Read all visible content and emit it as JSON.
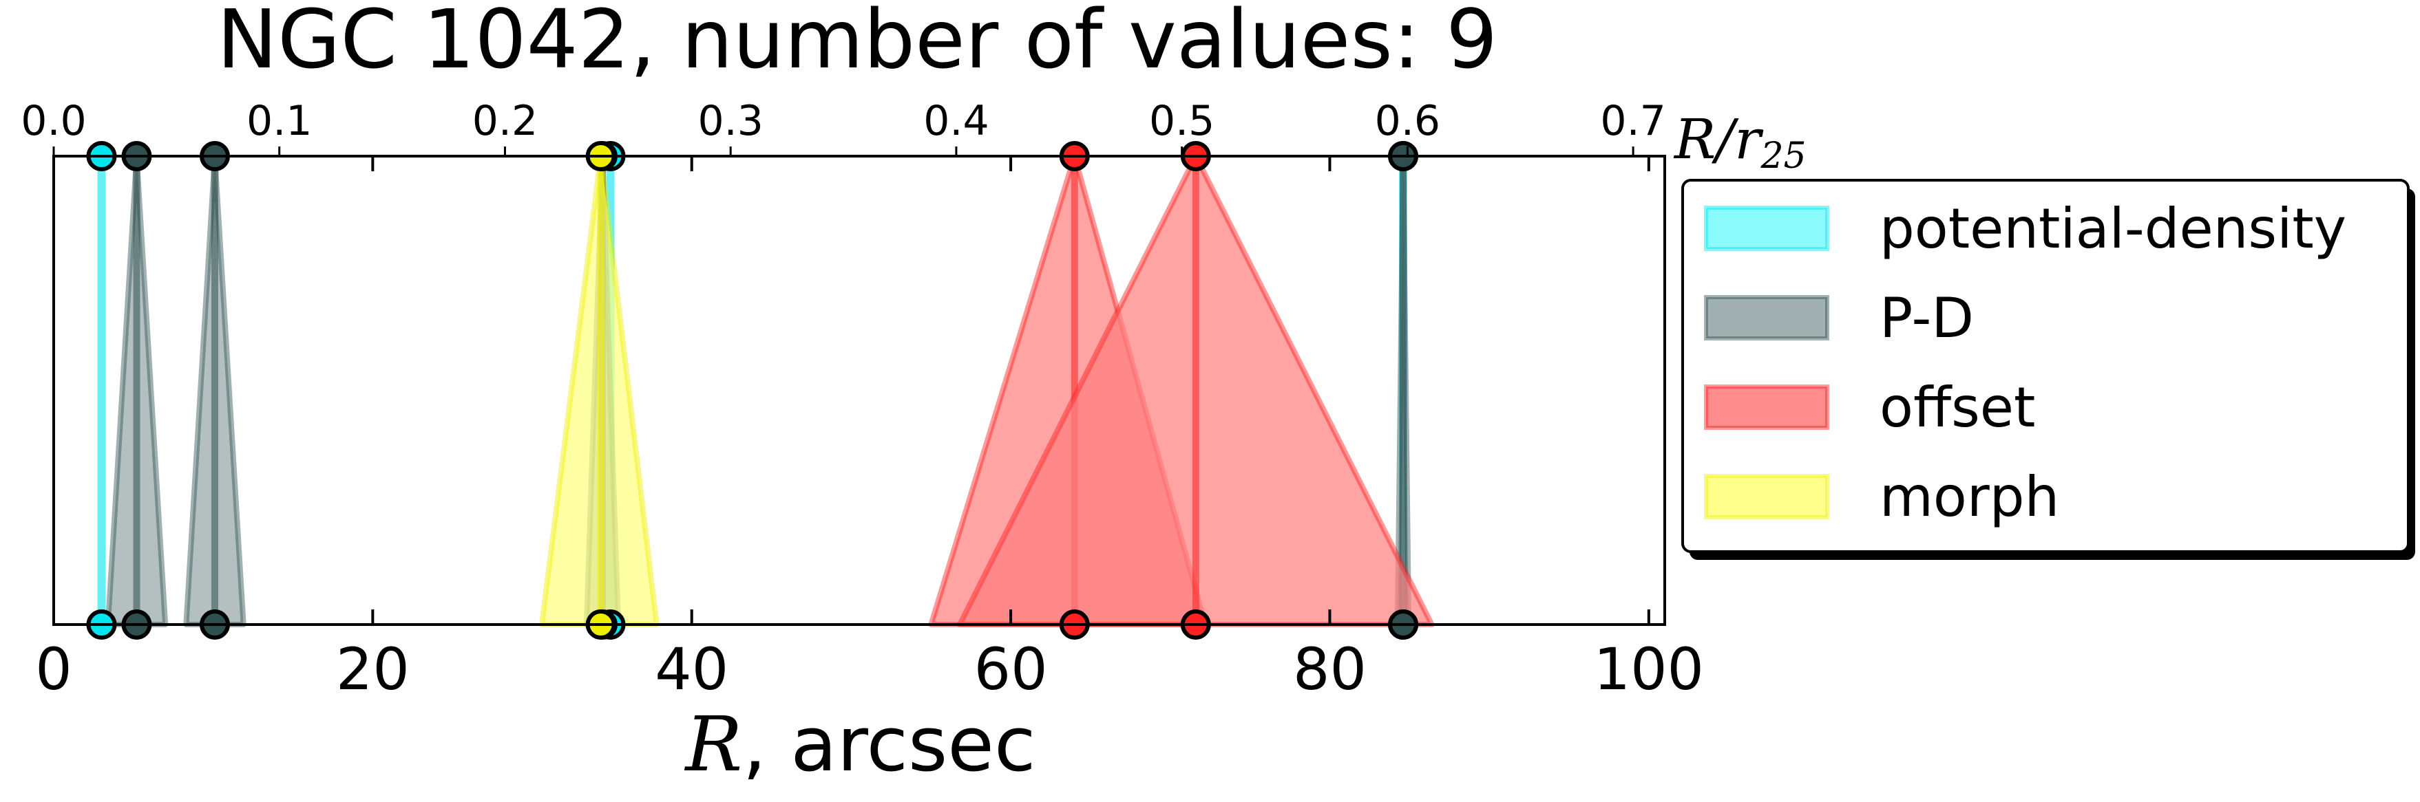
{
  "chart_data": {
    "type": "scatter",
    "title": "NGC 1042, number of values: 9",
    "xlabel_symbol": "R",
    "xlabel_unit": ", arcsec",
    "x2label_symbol": "R",
    "x2label_sep": "/",
    "x2label_r": "r",
    "x2label_sub": "25",
    "xlim": [
      0,
      101
    ],
    "x2lim": [
      0,
      0.714
    ],
    "x_ticks": [
      0,
      20,
      40,
      60,
      80,
      100
    ],
    "x2_ticks": [
      0.0,
      0.1,
      0.2,
      0.3,
      0.4,
      0.5,
      0.6,
      0.7
    ],
    "legend_position": "outside-right",
    "grid": false,
    "series": [
      {
        "name": "potential-density",
        "color": "#00e5ee",
        "fill": "#7ffbfb",
        "shape": "line",
        "points": [
          {
            "x": 3.0,
            "x2": 0.0212
          },
          {
            "x": 34.9,
            "x2": 0.2468
          },
          {
            "x": 84.6,
            "x2": 0.5983
          }
        ]
      },
      {
        "name": "P-D",
        "color": "#2f4f4f",
        "fill": "#97a7a7",
        "shape": "triangle",
        "points": [
          {
            "x": 5.2,
            "x2": 0.0368,
            "width": 3.6
          },
          {
            "x": 10.1,
            "x2": 0.0714,
            "width": 3.6
          },
          {
            "x": 34.4,
            "x2": 0.2433,
            "width": 2.0
          },
          {
            "x": 84.6,
            "x2": 0.5983,
            "width": 0.7
          }
        ]
      },
      {
        "name": "offset",
        "color": "#ff2020",
        "fill": "#ff8080",
        "shape": "triangle",
        "points": [
          {
            "x": 64.0,
            "x2": 0.4526,
            "lo": 55.0,
            "hi": 72.2
          },
          {
            "x": 71.6,
            "x2": 0.5064,
            "lo": 56.8,
            "hi": 86.4
          }
        ]
      },
      {
        "name": "morph",
        "color": "#eeee00",
        "fill": "#ffff80",
        "shape": "triangle",
        "points": [
          {
            "x": 34.3,
            "x2": 0.2426,
            "lo": 30.6,
            "hi": 37.8
          }
        ]
      }
    ]
  }
}
